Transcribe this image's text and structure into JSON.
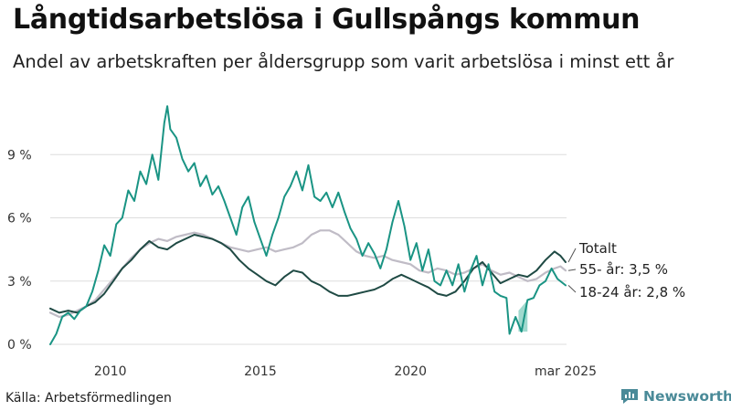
{
  "title": "Långtidsarbetslösa i Gullspångs kommun",
  "subtitle": "Andel av arbetskraften per åldersgrupp som varit arbetslösa i minst ett år",
  "source": "Källa: Arbetsförmedlingen",
  "brand": "Newsworthy",
  "colors": {
    "youth": "#1a9484",
    "senior": "#c0bcc6",
    "total": "#1f4a44",
    "band": "#8fd2c5",
    "grid": "#dedede",
    "brand": "#4a8a98"
  },
  "chart_data": {
    "type": "line",
    "title": "Långtidsarbetslösa i Gullspångs kommun",
    "subtitle": "Andel av arbetskraften per åldersgrupp som varit arbetslösa i minst ett år",
    "x_range": [
      2008.0,
      2025.2
    ],
    "ylim": [
      0,
      12
    ],
    "y_ticks": [
      0,
      3,
      6,
      9
    ],
    "y_tick_labels": [
      "0 %",
      "3 %",
      "6 %",
      "9 %"
    ],
    "x_ticks": [
      2010,
      2015,
      2020,
      2025.17
    ],
    "x_tick_labels": [
      "2010",
      "2015",
      "2020",
      "mar 2025"
    ],
    "grid": "horizontal",
    "end_labels": [
      {
        "series": "total",
        "text": "Totalt"
      },
      {
        "series": "senior",
        "text": "55- år: 3,5 %"
      },
      {
        "series": "youth",
        "text": "18-24 år: 2,8 %"
      }
    ],
    "uncertainty_band": [
      {
        "x": 2023.6,
        "low": 0.6,
        "high": 1.6
      },
      {
        "x": 2023.9,
        "low": 0.6,
        "high": 2.1
      }
    ],
    "series": [
      {
        "key": "total",
        "name": "Totalt",
        "points": [
          [
            2008.0,
            1.7
          ],
          [
            2008.3,
            1.5
          ],
          [
            2008.6,
            1.6
          ],
          [
            2008.9,
            1.5
          ],
          [
            2009.2,
            1.8
          ],
          [
            2009.5,
            2.0
          ],
          [
            2009.8,
            2.4
          ],
          [
            2010.1,
            3.0
          ],
          [
            2010.4,
            3.6
          ],
          [
            2010.7,
            4.0
          ],
          [
            2011.0,
            4.5
          ],
          [
            2011.3,
            4.9
          ],
          [
            2011.6,
            4.6
          ],
          [
            2011.9,
            4.5
          ],
          [
            2012.2,
            4.8
          ],
          [
            2012.5,
            5.0
          ],
          [
            2012.8,
            5.2
          ],
          [
            2013.1,
            5.1
          ],
          [
            2013.4,
            5.0
          ],
          [
            2013.7,
            4.8
          ],
          [
            2014.0,
            4.5
          ],
          [
            2014.3,
            4.0
          ],
          [
            2014.6,
            3.6
          ],
          [
            2014.9,
            3.3
          ],
          [
            2015.2,
            3.0
          ],
          [
            2015.5,
            2.8
          ],
          [
            2015.8,
            3.2
          ],
          [
            2016.1,
            3.5
          ],
          [
            2016.4,
            3.4
          ],
          [
            2016.7,
            3.0
          ],
          [
            2017.0,
            2.8
          ],
          [
            2017.3,
            2.5
          ],
          [
            2017.6,
            2.3
          ],
          [
            2017.9,
            2.3
          ],
          [
            2018.2,
            2.4
          ],
          [
            2018.5,
            2.5
          ],
          [
            2018.8,
            2.6
          ],
          [
            2019.1,
            2.8
          ],
          [
            2019.4,
            3.1
          ],
          [
            2019.7,
            3.3
          ],
          [
            2020.0,
            3.1
          ],
          [
            2020.3,
            2.9
          ],
          [
            2020.6,
            2.7
          ],
          [
            2020.9,
            2.4
          ],
          [
            2021.2,
            2.3
          ],
          [
            2021.5,
            2.5
          ],
          [
            2021.8,
            3.0
          ],
          [
            2022.1,
            3.6
          ],
          [
            2022.4,
            3.9
          ],
          [
            2022.7,
            3.4
          ],
          [
            2023.0,
            2.9
          ],
          [
            2023.3,
            3.1
          ],
          [
            2023.6,
            3.3
          ],
          [
            2023.9,
            3.2
          ],
          [
            2024.2,
            3.5
          ],
          [
            2024.5,
            4.0
          ],
          [
            2024.8,
            4.4
          ],
          [
            2025.0,
            4.2
          ],
          [
            2025.17,
            3.9
          ]
        ]
      },
      {
        "key": "senior",
        "name": "55- år",
        "points": [
          [
            2008.0,
            1.5
          ],
          [
            2008.3,
            1.3
          ],
          [
            2008.6,
            1.4
          ],
          [
            2008.9,
            1.6
          ],
          [
            2009.2,
            1.8
          ],
          [
            2009.5,
            2.1
          ],
          [
            2009.8,
            2.6
          ],
          [
            2010.1,
            3.1
          ],
          [
            2010.4,
            3.6
          ],
          [
            2010.7,
            4.1
          ],
          [
            2011.0,
            4.5
          ],
          [
            2011.3,
            4.8
          ],
          [
            2011.6,
            5.0
          ],
          [
            2011.9,
            4.9
          ],
          [
            2012.2,
            5.1
          ],
          [
            2012.5,
            5.2
          ],
          [
            2012.8,
            5.3
          ],
          [
            2013.1,
            5.2
          ],
          [
            2013.4,
            5.0
          ],
          [
            2013.7,
            4.8
          ],
          [
            2014.0,
            4.6
          ],
          [
            2014.3,
            4.5
          ],
          [
            2014.6,
            4.4
          ],
          [
            2014.9,
            4.5
          ],
          [
            2015.2,
            4.6
          ],
          [
            2015.5,
            4.4
          ],
          [
            2015.8,
            4.5
          ],
          [
            2016.1,
            4.6
          ],
          [
            2016.4,
            4.8
          ],
          [
            2016.7,
            5.2
          ],
          [
            2017.0,
            5.4
          ],
          [
            2017.3,
            5.4
          ],
          [
            2017.6,
            5.2
          ],
          [
            2017.9,
            4.8
          ],
          [
            2018.2,
            4.4
          ],
          [
            2018.5,
            4.2
          ],
          [
            2018.8,
            4.1
          ],
          [
            2019.1,
            4.2
          ],
          [
            2019.4,
            4.0
          ],
          [
            2019.7,
            3.9
          ],
          [
            2020.0,
            3.8
          ],
          [
            2020.3,
            3.5
          ],
          [
            2020.6,
            3.4
          ],
          [
            2020.9,
            3.6
          ],
          [
            2021.2,
            3.5
          ],
          [
            2021.5,
            3.3
          ],
          [
            2021.8,
            3.4
          ],
          [
            2022.1,
            3.6
          ],
          [
            2022.4,
            3.8
          ],
          [
            2022.7,
            3.5
          ],
          [
            2023.0,
            3.3
          ],
          [
            2023.3,
            3.4
          ],
          [
            2023.6,
            3.2
          ],
          [
            2023.9,
            3.0
          ],
          [
            2024.2,
            3.1
          ],
          [
            2024.5,
            3.4
          ],
          [
            2024.8,
            3.6
          ],
          [
            2025.0,
            3.7
          ],
          [
            2025.17,
            3.5
          ]
        ]
      },
      {
        "key": "youth",
        "name": "18-24 år",
        "points": [
          [
            2008.0,
            0.0
          ],
          [
            2008.2,
            0.5
          ],
          [
            2008.4,
            1.3
          ],
          [
            2008.6,
            1.5
          ],
          [
            2008.8,
            1.2
          ],
          [
            2009.0,
            1.6
          ],
          [
            2009.2,
            1.8
          ],
          [
            2009.4,
            2.5
          ],
          [
            2009.6,
            3.5
          ],
          [
            2009.8,
            4.7
          ],
          [
            2010.0,
            4.2
          ],
          [
            2010.2,
            5.7
          ],
          [
            2010.4,
            6.0
          ],
          [
            2010.6,
            7.3
          ],
          [
            2010.8,
            6.8
          ],
          [
            2011.0,
            8.2
          ],
          [
            2011.2,
            7.6
          ],
          [
            2011.4,
            9.0
          ],
          [
            2011.6,
            7.8
          ],
          [
            2011.8,
            10.5
          ],
          [
            2011.9,
            11.3
          ],
          [
            2012.0,
            10.2
          ],
          [
            2012.2,
            9.8
          ],
          [
            2012.4,
            8.8
          ],
          [
            2012.6,
            8.2
          ],
          [
            2012.8,
            8.6
          ],
          [
            2013.0,
            7.5
          ],
          [
            2013.2,
            8.0
          ],
          [
            2013.4,
            7.1
          ],
          [
            2013.6,
            7.5
          ],
          [
            2013.8,
            6.8
          ],
          [
            2014.0,
            6.0
          ],
          [
            2014.2,
            5.2
          ],
          [
            2014.4,
            6.5
          ],
          [
            2014.6,
            7.0
          ],
          [
            2014.8,
            5.8
          ],
          [
            2015.0,
            5.0
          ],
          [
            2015.2,
            4.2
          ],
          [
            2015.4,
            5.2
          ],
          [
            2015.6,
            6.0
          ],
          [
            2015.8,
            7.0
          ],
          [
            2016.0,
            7.5
          ],
          [
            2016.2,
            8.2
          ],
          [
            2016.4,
            7.3
          ],
          [
            2016.6,
            8.5
          ],
          [
            2016.8,
            7.0
          ],
          [
            2017.0,
            6.8
          ],
          [
            2017.2,
            7.2
          ],
          [
            2017.4,
            6.5
          ],
          [
            2017.6,
            7.2
          ],
          [
            2017.8,
            6.3
          ],
          [
            2018.0,
            5.5
          ],
          [
            2018.2,
            5.0
          ],
          [
            2018.4,
            4.2
          ],
          [
            2018.6,
            4.8
          ],
          [
            2018.8,
            4.3
          ],
          [
            2019.0,
            3.6
          ],
          [
            2019.2,
            4.5
          ],
          [
            2019.4,
            5.8
          ],
          [
            2019.6,
            6.8
          ],
          [
            2019.8,
            5.6
          ],
          [
            2020.0,
            4.0
          ],
          [
            2020.2,
            4.8
          ],
          [
            2020.4,
            3.5
          ],
          [
            2020.6,
            4.5
          ],
          [
            2020.8,
            3.0
          ],
          [
            2021.0,
            2.8
          ],
          [
            2021.2,
            3.5
          ],
          [
            2021.4,
            2.8
          ],
          [
            2021.6,
            3.8
          ],
          [
            2021.8,
            2.5
          ],
          [
            2022.0,
            3.5
          ],
          [
            2022.2,
            4.2
          ],
          [
            2022.4,
            2.8
          ],
          [
            2022.6,
            3.8
          ],
          [
            2022.8,
            2.5
          ],
          [
            2023.0,
            2.3
          ],
          [
            2023.2,
            2.2
          ],
          [
            2023.3,
            0.5
          ],
          [
            2023.5,
            1.3
          ],
          [
            2023.7,
            0.6
          ],
          [
            2023.9,
            2.1
          ],
          [
            2024.1,
            2.2
          ],
          [
            2024.3,
            2.8
          ],
          [
            2024.5,
            3.0
          ],
          [
            2024.7,
            3.6
          ],
          [
            2024.9,
            3.1
          ],
          [
            2025.17,
            2.8
          ]
        ]
      }
    ]
  }
}
